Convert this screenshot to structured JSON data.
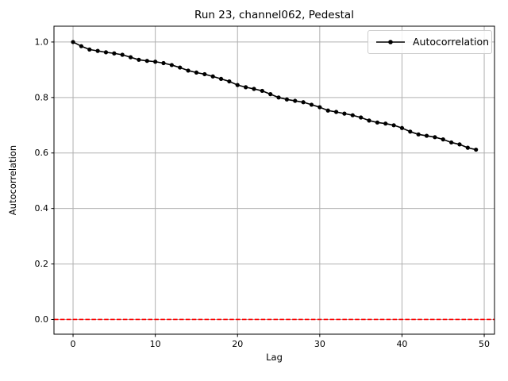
{
  "title": "Run 23, channel062, Pedestal",
  "colors": {
    "background": "#ffffff",
    "grid": "#b0b0b0",
    "spine": "#000000",
    "series": "#000000",
    "zero_line": "#ff0000",
    "legend_border": "#cccccc"
  },
  "chart_data": {
    "type": "line",
    "title": "Run 23, channel062, Pedestal",
    "xlabel": "Lag",
    "ylabel": "Autocorrelation",
    "grid": true,
    "xlim": [
      -2.32,
      51.25
    ],
    "ylim": [
      -0.053,
      1.057
    ],
    "xticks": {
      "values": [
        0,
        10,
        20,
        30,
        40,
        50
      ],
      "labels": [
        "0",
        "10",
        "20",
        "30",
        "40",
        "50"
      ]
    },
    "yticks": {
      "values": [
        0.0,
        0.2,
        0.4,
        0.6,
        0.8,
        1.0
      ],
      "labels": [
        "0.0",
        "0.2",
        "0.4",
        "0.6",
        "0.8",
        "1.0"
      ]
    },
    "x": [
      0,
      1,
      2,
      3,
      4,
      5,
      6,
      7,
      8,
      9,
      10,
      11,
      12,
      13,
      14,
      15,
      16,
      17,
      18,
      19,
      20,
      21,
      22,
      23,
      24,
      25,
      26,
      27,
      28,
      29,
      30,
      31,
      32,
      33,
      34,
      35,
      36,
      37,
      38,
      39,
      40,
      41,
      42,
      43,
      44,
      45,
      46,
      47,
      48,
      49
    ],
    "series": [
      {
        "name": "Autocorrelation",
        "color": "#000000",
        "marker": "circle",
        "values": [
          1.0,
          0.985,
          0.973,
          0.968,
          0.963,
          0.959,
          0.954,
          0.945,
          0.936,
          0.932,
          0.929,
          0.924,
          0.917,
          0.908,
          0.897,
          0.89,
          0.884,
          0.876,
          0.867,
          0.858,
          0.845,
          0.837,
          0.831,
          0.824,
          0.812,
          0.8,
          0.793,
          0.788,
          0.783,
          0.774,
          0.765,
          0.753,
          0.748,
          0.742,
          0.736,
          0.728,
          0.717,
          0.71,
          0.706,
          0.7,
          0.69,
          0.677,
          0.667,
          0.662,
          0.657,
          0.649,
          0.638,
          0.631,
          0.619,
          0.612
        ]
      }
    ],
    "zero_line": {
      "y": 0.0,
      "color": "#ff0000",
      "style": "dashed"
    },
    "legend": {
      "position": "upper right",
      "entries": [
        {
          "label": "Autocorrelation",
          "color": "#000000",
          "marker": "circle"
        }
      ]
    }
  }
}
